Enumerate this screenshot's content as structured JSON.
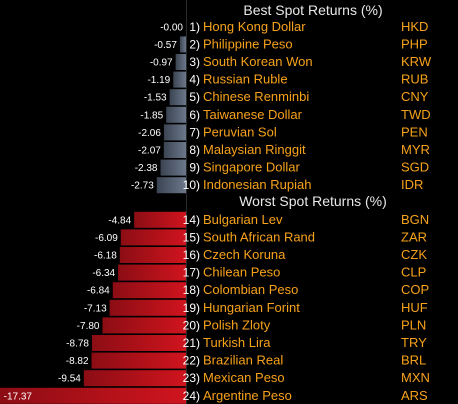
{
  "chart_data": {
    "type": "bar",
    "orientation": "horizontal",
    "unit": "%",
    "best": {
      "title": "Best Spot Returns (%)",
      "color": "#5e6b7e",
      "rows": [
        {
          "rank": "1)",
          "name": "Hong Kong Dollar",
          "code": "HKD",
          "value": -0.0,
          "label": "-0.00"
        },
        {
          "rank": "2)",
          "name": "Philippine Peso",
          "code": "PHP",
          "value": -0.57,
          "label": "-0.57"
        },
        {
          "rank": "3)",
          "name": "South Korean Won",
          "code": "KRW",
          "value": -0.97,
          "label": "-0.97"
        },
        {
          "rank": "4)",
          "name": "Russian Ruble",
          "code": "RUB",
          "value": -1.19,
          "label": "-1.19"
        },
        {
          "rank": "5)",
          "name": "Chinese Renminbi",
          "code": "CNY",
          "value": -1.53,
          "label": "-1.53"
        },
        {
          "rank": "6)",
          "name": "Taiwanese Dollar",
          "code": "TWD",
          "value": -1.85,
          "label": "-1.85"
        },
        {
          "rank": "7)",
          "name": "Peruvian Sol",
          "code": "PEN",
          "value": -2.06,
          "label": "-2.06"
        },
        {
          "rank": "8)",
          "name": "Malaysian Ringgit",
          "code": "MYR",
          "value": -2.07,
          "label": "-2.07"
        },
        {
          "rank": "9)",
          "name": "Singapore Dollar",
          "code": "SGD",
          "value": -2.38,
          "label": "-2.38"
        },
        {
          "rank": "10)",
          "name": "Indonesian Rupiah",
          "code": "IDR",
          "value": -2.73,
          "label": "-2.73"
        }
      ]
    },
    "worst": {
      "title": "Worst Spot Returns (%)",
      "color": "#d0141e",
      "rows": [
        {
          "rank": "14)",
          "name": "Bulgarian Lev",
          "code": "BGN",
          "value": -4.84,
          "label": "-4.84"
        },
        {
          "rank": "15)",
          "name": "South African Rand",
          "code": "ZAR",
          "value": -6.09,
          "label": "-6.09"
        },
        {
          "rank": "16)",
          "name": "Czech Koruna",
          "code": "CZK",
          "value": -6.18,
          "label": "-6.18"
        },
        {
          "rank": "17)",
          "name": "Chilean Peso",
          "code": "CLP",
          "value": -6.34,
          "label": "-6.34"
        },
        {
          "rank": "18)",
          "name": "Colombian Peso",
          "code": "COP",
          "value": -6.84,
          "label": "-6.84"
        },
        {
          "rank": "19)",
          "name": "Hungarian Forint",
          "code": "HUF",
          "value": -7.13,
          "label": "-7.13"
        },
        {
          "rank": "20)",
          "name": "Polish Zloty",
          "code": "PLN",
          "value": -7.8,
          "label": "-7.80"
        },
        {
          "rank": "21)",
          "name": "Turkish Lira",
          "code": "TRY",
          "value": -8.78,
          "label": "-8.78"
        },
        {
          "rank": "22)",
          "name": "Brazilian Real",
          "code": "BRL",
          "value": -8.82,
          "label": "-8.82"
        },
        {
          "rank": "23)",
          "name": "Mexican Peso",
          "code": "MXN",
          "value": -9.54,
          "label": "-9.54"
        },
        {
          "rank": "24)",
          "name": "Argentine Peso",
          "code": "ARS",
          "value": -17.37,
          "label": "-17.37"
        }
      ]
    },
    "xlim": [
      -17.37,
      0
    ],
    "grid": false,
    "legend": "none"
  }
}
